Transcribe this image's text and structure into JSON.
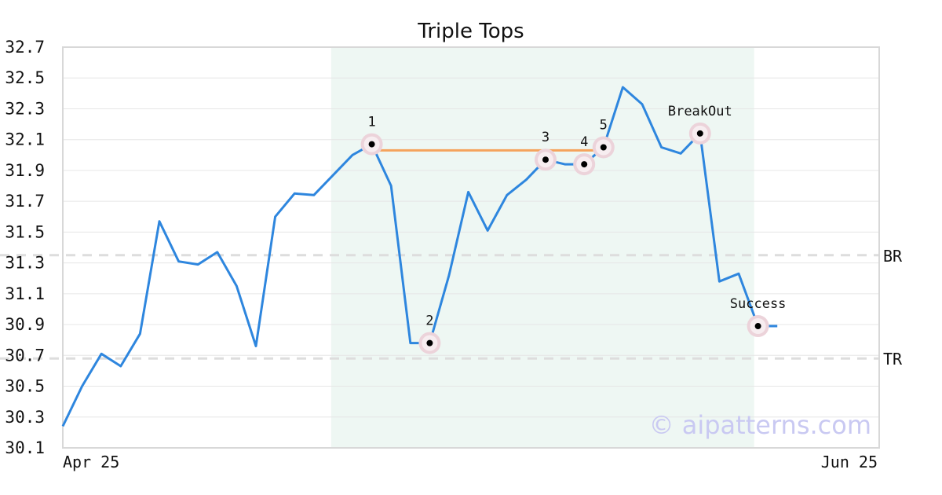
{
  "chart_data": {
    "type": "line",
    "title": "Triple Tops",
    "xlabel": "",
    "ylabel": "",
    "ylim": [
      30.1,
      32.7
    ],
    "yticks": [
      "32.7",
      "32.5",
      "32.3",
      "32.1",
      "31.9",
      "31.7",
      "31.5",
      "31.3",
      "31.1",
      "30.9",
      "30.7",
      "30.5",
      "30.3",
      "30.1"
    ],
    "xticks": [
      "Apr 25",
      "Jun 25"
    ],
    "grid": true,
    "colors": {
      "line": "#2e86de",
      "pattern_band": "#eef7f3",
      "neckline": "#f5a35c",
      "marker_halo": "#ecd3da",
      "level_line": "#dddddd"
    },
    "series": [
      {
        "values": [
          30.24,
          30.5,
          30.71,
          30.63,
          30.84,
          31.57,
          31.31,
          31.29,
          31.37,
          31.15,
          30.76,
          31.6,
          31.75,
          31.74,
          31.87,
          32.0,
          32.07,
          31.8,
          30.78,
          30.78,
          31.22,
          31.76,
          31.51,
          31.74,
          31.84,
          31.97,
          31.94,
          31.94,
          32.05,
          32.44,
          32.33,
          32.05,
          32.01,
          32.14,
          31.18,
          31.23,
          30.89,
          30.89
        ]
      }
    ],
    "pattern_range": [
      13.9,
      35.8
    ],
    "neckline": {
      "from": 16.2,
      "to": 27.9,
      "value": 32.03
    },
    "annotations": [
      {
        "label": "1",
        "x": 16,
        "y": 32.07
      },
      {
        "label": "2",
        "x": 19,
        "y": 30.78
      },
      {
        "label": "3",
        "x": 25,
        "y": 31.97
      },
      {
        "label": "4",
        "x": 27,
        "y": 31.94
      },
      {
        "label": "5",
        "x": 28,
        "y": 32.05
      },
      {
        "label": "BreakOut",
        "x": 33,
        "y": 32.14
      },
      {
        "label": "Success",
        "x": 36,
        "y": 30.89
      }
    ],
    "levels": [
      {
        "label": "BR",
        "value": 31.35
      },
      {
        "label": "TR",
        "value": 30.68
      }
    ]
  },
  "watermark": "© aipatterns.com"
}
